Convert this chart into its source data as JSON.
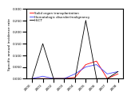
{
  "years": [
    2000,
    2001,
    2002,
    2003,
    2004,
    2005,
    2006,
    2007,
    2008
  ],
  "solid_organ": [
    0.0,
    0.0,
    0.0,
    0.0,
    0.005,
    0.06,
    0.075,
    0.0,
    0.02
  ],
  "hematologic": [
    0.0,
    0.01,
    0.0,
    0.0,
    0.02,
    0.05,
    0.06,
    0.02,
    0.03
  ],
  "hsct": [
    0.0,
    0.15,
    0.0,
    0.0,
    0.0,
    0.25,
    0.0,
    0.0,
    0.03
  ],
  "colors": {
    "solid_organ": "#ff0000",
    "hematologic": "#4444ff",
    "hsct": "#000000"
  },
  "labels": {
    "solid_organ": "Solid organ transplantation",
    "hematologic": "Hematologic disorder/malignancy",
    "hsct": "HSCT"
  },
  "ylabel": "Specific annual incidence rate",
  "ylim": [
    0,
    0.3
  ],
  "yticks": [
    0.0,
    0.05,
    0.1,
    0.15,
    0.2,
    0.25,
    0.3
  ],
  "xticks": [
    2000,
    2001,
    2002,
    2003,
    2004,
    2005,
    2006,
    2007,
    2008
  ],
  "legend_fontsize": 3.0,
  "axis_fontsize": 3.2,
  "tick_fontsize": 3.0,
  "linewidth": 0.6,
  "background_color": "#ffffff"
}
